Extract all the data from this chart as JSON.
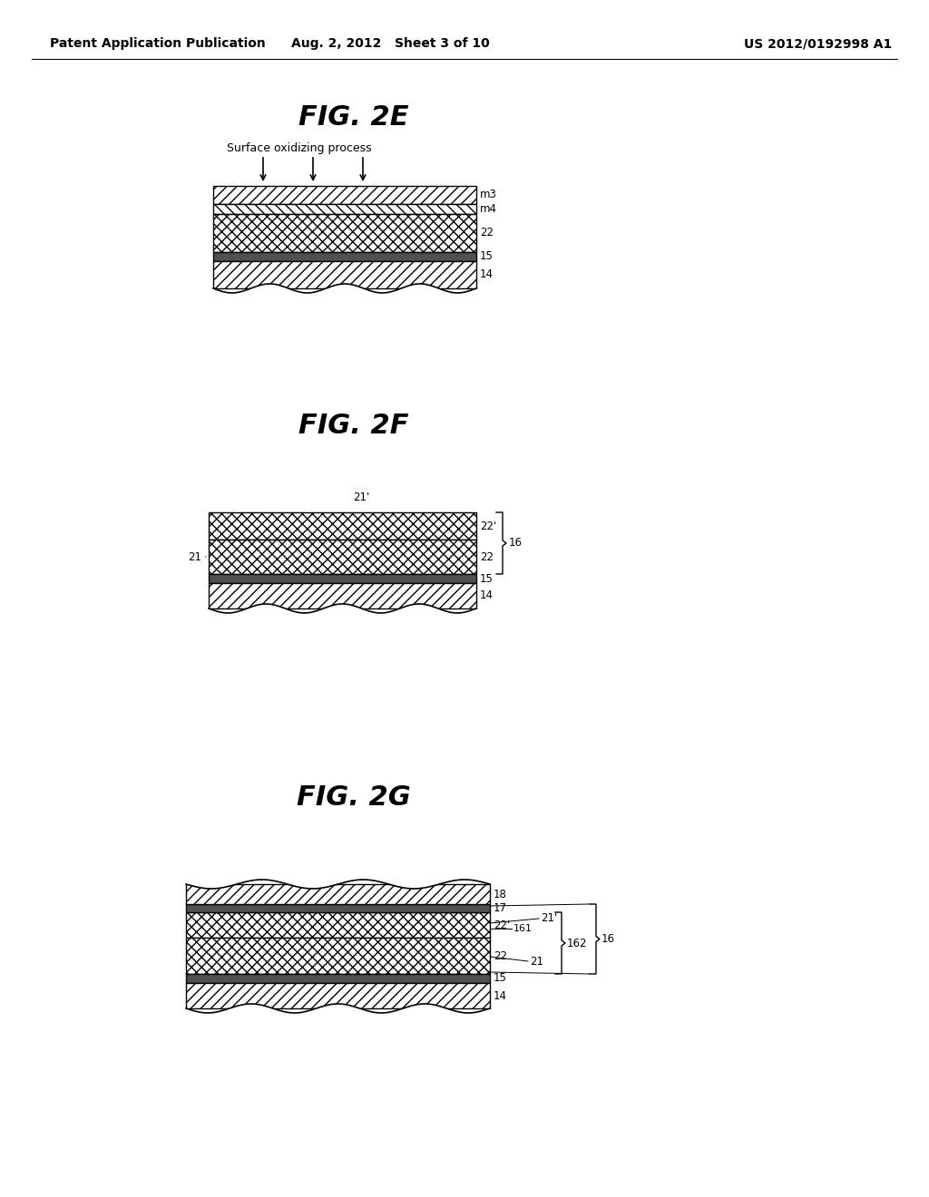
{
  "bg_color": "#ffffff",
  "header_left": "Patent Application Publication",
  "header_mid": "Aug. 2, 2012   Sheet 3 of 10",
  "header_right": "US 2012/0192998 A1",
  "fig2e_title": "FIG. 2E",
  "fig2f_title": "FIG. 2F",
  "fig2g_title": "FIG. 2G",
  "line_color": "#000000",
  "fs_header": 10,
  "fs_title": 22,
  "fs_label": 8.5,
  "fs_ann": 9
}
